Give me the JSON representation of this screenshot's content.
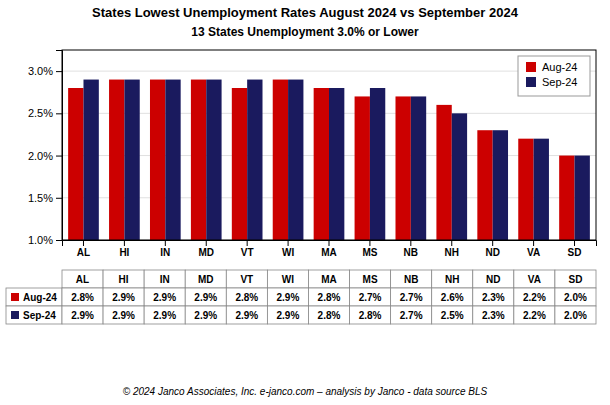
{
  "chart_data": {
    "type": "bar",
    "title": "States Lowest Unemployment Rates August 2024 vs September 2024",
    "subtitle": "13 States  Unemployment 3.0% or Lower",
    "categories": [
      "AL",
      "HI",
      "IN",
      "MD",
      "VT",
      "WI",
      "MA",
      "MS",
      "NB",
      "NH",
      "ND",
      "VA",
      "SD"
    ],
    "series": [
      {
        "name": "Aug-24",
        "color": "#cc0000",
        "values": [
          2.8,
          2.9,
          2.9,
          2.9,
          2.8,
          2.9,
          2.8,
          2.7,
          2.7,
          2.6,
          2.3,
          2.2,
          2.0
        ],
        "value_labels": [
          "2.8%",
          "2.9%",
          "2.9%",
          "2.9%",
          "2.8%",
          "2.9%",
          "2.8%",
          "2.7%",
          "2.7%",
          "2.6%",
          "2.3%",
          "2.2%",
          "2.0%"
        ]
      },
      {
        "name": "Sep-24",
        "color": "#1a1a5e",
        "values": [
          2.9,
          2.9,
          2.9,
          2.9,
          2.9,
          2.9,
          2.8,
          2.8,
          2.7,
          2.5,
          2.3,
          2.2,
          2.0
        ],
        "value_labels": [
          "2.9%",
          "2.9%",
          "2.9%",
          "2.9%",
          "2.9%",
          "2.9%",
          "2.8%",
          "2.8%",
          "2.7%",
          "2.5%",
          "2.3%",
          "2.2%",
          "2.0%"
        ]
      }
    ],
    "ylim": [
      1.0,
      3.25
    ],
    "yticks": [
      {
        "value": 1.0,
        "label": "1.0%"
      },
      {
        "value": 1.5,
        "label": "1.5%"
      },
      {
        "value": 2.0,
        "label": "2.0%"
      },
      {
        "value": 2.5,
        "label": "2.5%"
      },
      {
        "value": 3.0,
        "label": "3.0%"
      }
    ],
    "grid": true,
    "legend": "upper right",
    "annotations": [
      "© 2024 Janco Associates, Inc.  e-janco.com – analysis by Janco - data source BLS"
    ]
  }
}
